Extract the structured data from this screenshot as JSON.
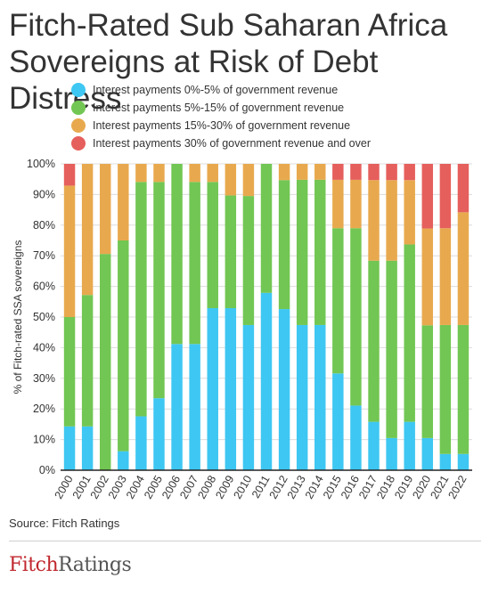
{
  "title": "Fitch-Rated Sub Saharan Africa Sovereigns at Risk of Debt Distress",
  "source": "Source: Fitch Ratings",
  "logo": {
    "part1": "Fitch",
    "part2": "Ratings"
  },
  "chart_data": {
    "type": "bar",
    "stacked": true,
    "title": "",
    "xlabel": "",
    "ylabel": "% of Fitch-rated SSA sovereigns",
    "ylim": [
      0,
      100
    ],
    "yticks": [
      "0%",
      "10%",
      "20%",
      "30%",
      "40%",
      "50%",
      "60%",
      "70%",
      "80%",
      "90%",
      "100%"
    ],
    "legend_position": "top",
    "grid": true,
    "categories": [
      "2000",
      "2001",
      "2002",
      "2003",
      "2004",
      "2005",
      "2006",
      "2007",
      "2008",
      "2009",
      "2010",
      "2011",
      "2012",
      "2013",
      "2014",
      "2015",
      "2016",
      "2017",
      "2018",
      "2019",
      "2020",
      "2021",
      "2022"
    ],
    "series": [
      {
        "name": "Interest payments 0%-5% of government revenue",
        "color": "#3ec7f2",
        "values": [
          14.3,
          14.3,
          0,
          6.2,
          17.6,
          23.5,
          41.2,
          41.2,
          52.9,
          52.9,
          47.4,
          57.9,
          52.6,
          47.4,
          47.4,
          31.6,
          21.1,
          15.8,
          10.5,
          15.8,
          10.5,
          5.3,
          5.3
        ]
      },
      {
        "name": "Interest payments 5%-15% of government revenue",
        "color": "#72c653",
        "values": [
          35.7,
          42.9,
          70.6,
          68.8,
          76.5,
          70.6,
          58.8,
          52.9,
          41.2,
          36.8,
          42.1,
          42.1,
          42.1,
          47.4,
          47.4,
          47.4,
          57.9,
          52.6,
          57.9,
          57.9,
          36.8,
          42.1,
          42.1
        ]
      },
      {
        "name": "Interest payments 15%-30% of government revenue",
        "color": "#e8a94e",
        "values": [
          42.9,
          42.8,
          29.4,
          25.0,
          5.9,
          5.9,
          0,
          5.9,
          5.9,
          10.3,
          10.5,
          0,
          5.3,
          5.2,
          5.2,
          15.8,
          15.8,
          26.3,
          26.3,
          21.0,
          31.6,
          31.6,
          36.8
        ]
      },
      {
        "name": "Interest payments 30% of government revenue and over",
        "color": "#e55f5c",
        "values": [
          7.1,
          0,
          0,
          0,
          0,
          0,
          0,
          0,
          0,
          0,
          0,
          0,
          0,
          0,
          0,
          5.2,
          5.2,
          5.3,
          5.3,
          5.3,
          21.1,
          21.0,
          15.8
        ]
      }
    ]
  }
}
